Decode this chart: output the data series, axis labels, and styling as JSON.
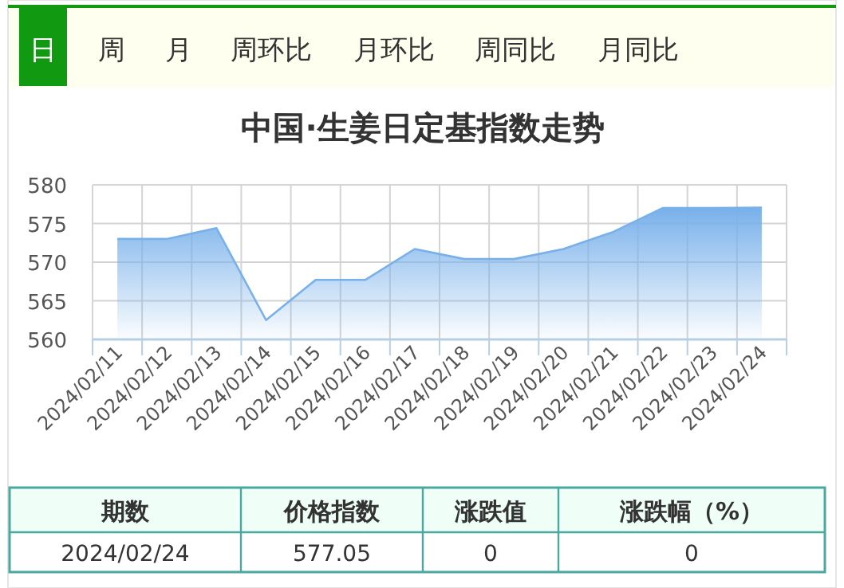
{
  "chart_data": {
    "type": "area",
    "title": "中国·生姜日定基指数走势",
    "categories": [
      "2024/02/11",
      "2024/02/12",
      "2024/02/13",
      "2024/02/14",
      "2024/02/15",
      "2024/02/16",
      "2024/02/17",
      "2024/02/18",
      "2024/02/19",
      "2024/02/20",
      "2024/02/21",
      "2024/02/22",
      "2024/02/23",
      "2024/02/24"
    ],
    "values": [
      573.0,
      573.0,
      574.4,
      562.5,
      567.7,
      567.7,
      571.7,
      570.4,
      570.4,
      571.7,
      573.9,
      577.0,
      577.0,
      577.05
    ],
    "color": "#78b0ea",
    "ylim": [
      560,
      580
    ],
    "yticks": [
      560,
      565,
      570,
      575,
      580
    ],
    "grid": true,
    "annotations": [
      "日",
      "周",
      "月",
      "周环比",
      "月环比",
      "周同比",
      "月同比",
      "期数",
      "价格指数",
      "涨跌值",
      "涨跌幅（%）",
      "2024/02/24",
      "577.05",
      "0",
      "0"
    ]
  }
}
